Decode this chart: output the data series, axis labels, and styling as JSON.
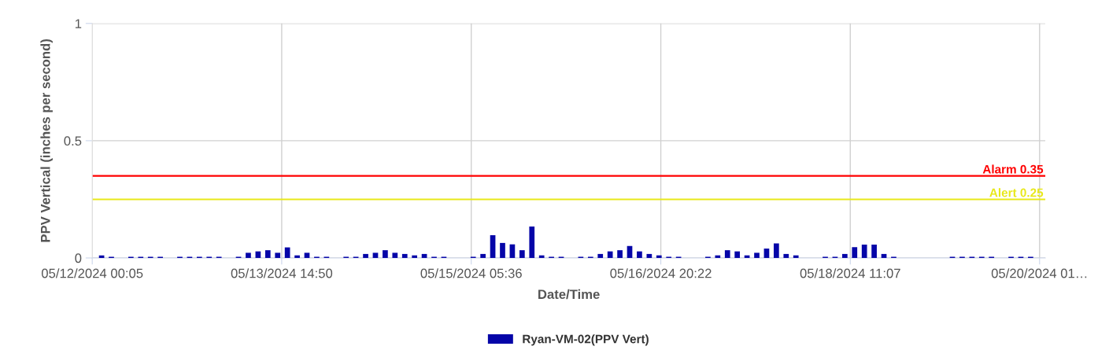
{
  "chart_data": {
    "type": "bar",
    "xlabel": "Date/Time",
    "ylabel": "PPV Vertical (inches per second)",
    "x": [
      "2024-05-12T02:00",
      "2024-05-12T04:00",
      "2024-05-12T06:00",
      "2024-05-12T08:00",
      "2024-05-12T10:00",
      "2024-05-12T12:00",
      "2024-05-12T14:00",
      "2024-05-12T16:00",
      "2024-05-12T18:00",
      "2024-05-12T20:00",
      "2024-05-12T22:00",
      "2024-05-13T00:00",
      "2024-05-13T02:00",
      "2024-05-13T04:00",
      "2024-05-13T06:00",
      "2024-05-13T08:00",
      "2024-05-13T10:00",
      "2024-05-13T12:00",
      "2024-05-13T14:00",
      "2024-05-13T16:00",
      "2024-05-13T18:00",
      "2024-05-13T20:00",
      "2024-05-13T22:00",
      "2024-05-14T00:00",
      "2024-05-14T02:00",
      "2024-05-14T04:00",
      "2024-05-14T06:00",
      "2024-05-14T08:00",
      "2024-05-14T10:00",
      "2024-05-14T12:00",
      "2024-05-14T14:00",
      "2024-05-14T16:00",
      "2024-05-14T18:00",
      "2024-05-14T20:00",
      "2024-05-14T22:00",
      "2024-05-15T00:00",
      "2024-05-15T02:00",
      "2024-05-15T04:00",
      "2024-05-15T06:00",
      "2024-05-15T08:00",
      "2024-05-15T10:00",
      "2024-05-15T12:00",
      "2024-05-15T14:00",
      "2024-05-15T16:00",
      "2024-05-15T18:00",
      "2024-05-15T20:00",
      "2024-05-15T22:00",
      "2024-05-16T00:00",
      "2024-05-16T02:00",
      "2024-05-16T04:00",
      "2024-05-16T06:00",
      "2024-05-16T08:00",
      "2024-05-16T10:00",
      "2024-05-16T12:00",
      "2024-05-16T14:00",
      "2024-05-16T16:00",
      "2024-05-16T18:00",
      "2024-05-16T20:00",
      "2024-05-16T22:00",
      "2024-05-17T00:00",
      "2024-05-17T02:00",
      "2024-05-17T04:00",
      "2024-05-17T06:00",
      "2024-05-17T08:00",
      "2024-05-17T10:00",
      "2024-05-17T12:00",
      "2024-05-17T14:00",
      "2024-05-17T16:00",
      "2024-05-17T18:00",
      "2024-05-17T20:00",
      "2024-05-17T22:00",
      "2024-05-18T00:00",
      "2024-05-18T02:00",
      "2024-05-18T04:00",
      "2024-05-18T06:00",
      "2024-05-18T08:00",
      "2024-05-18T10:00",
      "2024-05-18T12:00",
      "2024-05-18T14:00",
      "2024-05-18T16:00",
      "2024-05-18T18:00",
      "2024-05-18T20:00",
      "2024-05-18T22:00",
      "2024-05-19T00:00",
      "2024-05-19T02:00",
      "2024-05-19T04:00",
      "2024-05-19T06:00",
      "2024-05-19T08:00",
      "2024-05-19T10:00",
      "2024-05-19T12:00",
      "2024-05-19T14:00",
      "2024-05-19T16:00",
      "2024-05-19T18:00",
      "2024-05-19T20:00",
      "2024-05-19T22:00",
      "2024-05-20T00:00"
    ],
    "series": [
      {
        "name": "Ryan-VM-02(PPV Vert)",
        "color": "#0505a8",
        "values": [
          0.011,
          0.005,
          0,
          0.005,
          0.005,
          0.005,
          0.005,
          0,
          0.005,
          0.005,
          0.005,
          0.005,
          0.005,
          0,
          0.005,
          0.022,
          0.028,
          0.033,
          0.022,
          0.045,
          0.011,
          0.022,
          0.005,
          0.005,
          0,
          0.005,
          0.005,
          0.017,
          0.022,
          0.033,
          0.022,
          0.017,
          0.011,
          0.017,
          0.005,
          0.005,
          0,
          0,
          0.005,
          0.017,
          0.097,
          0.064,
          0.058,
          0.033,
          0.134,
          0.011,
          0.005,
          0.005,
          0,
          0.005,
          0.005,
          0.017,
          0.028,
          0.033,
          0.051,
          0.028,
          0.017,
          0.011,
          0.005,
          0.005,
          0,
          0,
          0.005,
          0.011,
          0.033,
          0.028,
          0.011,
          0.022,
          0.04,
          0.062,
          0.017,
          0.011,
          0,
          0,
          0.005,
          0.005,
          0.017,
          0.046,
          0.057,
          0.057,
          0.017,
          0.005,
          0,
          0,
          0,
          0,
          0,
          0.005,
          0.005,
          0.005,
          0.005,
          0.005,
          0,
          0.005,
          0.005,
          0.005
        ]
      }
    ],
    "xlim": [
      "2024-05-12T00:05",
      "2024-05-20T03:00"
    ],
    "xticks": [
      {
        "value": "2024-05-12T00:05",
        "label": "05/12/2024 00:05"
      },
      {
        "value": "2024-05-13T14:50",
        "label": "05/13/2024 14:50"
      },
      {
        "value": "2024-05-15T05:36",
        "label": "05/15/2024 05:36"
      },
      {
        "value": "2024-05-16T20:22",
        "label": "05/16/2024 20:22"
      },
      {
        "value": "2024-05-18T11:07",
        "label": "05/18/2024 11:07"
      },
      {
        "value": "2024-05-20T01:50",
        "label": "05/20/2024 01…"
      }
    ],
    "ylim": [
      0,
      1
    ],
    "yticks": [
      0,
      0.5,
      1
    ],
    "ref_lines": [
      {
        "axis": "y",
        "value": 0.35,
        "label": "Alarm 0.35",
        "color": "#ff0000"
      },
      {
        "axis": "y",
        "value": 0.25,
        "label": "Alert 0.25",
        "color": "#e8e81a"
      }
    ],
    "grid": true,
    "legend": "bottom"
  }
}
